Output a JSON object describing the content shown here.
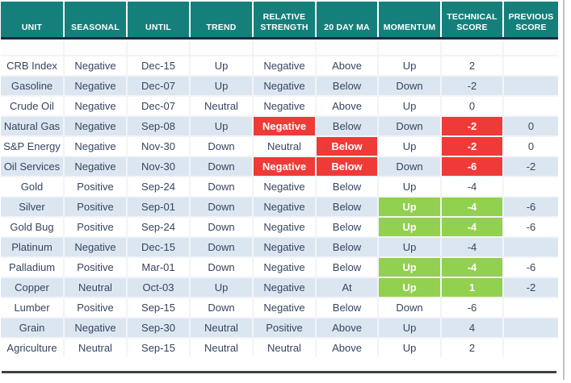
{
  "chart_data": {
    "type": "table",
    "columns": [
      "UNIT",
      "SEASONAL",
      "UNTIL",
      "TREND",
      "RELATIVE STRENGTH",
      "20 DAY MA",
      "MOMENTUM",
      "TECHNICAL SCORE",
      "PREVIOUS SCORE"
    ],
    "rows": [
      {
        "cells": [
          "CRB Index",
          "Negative",
          "Dec-15",
          "Up",
          "Negative",
          "Above",
          "Up",
          "2",
          ""
        ],
        "highlights": {}
      },
      {
        "cells": [
          "Gasoline",
          "Negative",
          "Dec-07",
          "Up",
          "Negative",
          "Below",
          "Down",
          "-2",
          ""
        ],
        "highlights": {}
      },
      {
        "cells": [
          "Crude Oil",
          "Negative",
          "Dec-07",
          "Neutral",
          "Negative",
          "Above",
          "Up",
          "0",
          ""
        ],
        "highlights": {}
      },
      {
        "cells": [
          "Natural Gas",
          "Negative",
          "Sep-08",
          "Up",
          "Negative",
          "Below",
          "Down",
          "-2",
          "0"
        ],
        "highlights": {
          "4": "red",
          "7": "red"
        }
      },
      {
        "cells": [
          "S&P Energy",
          "Negative",
          "Nov-30",
          "Down",
          "Neutral",
          "Below",
          "Up",
          "-2",
          "0"
        ],
        "highlights": {
          "5": "red",
          "7": "red"
        }
      },
      {
        "cells": [
          "Oil Services",
          "Negative",
          "Nov-30",
          "Down",
          "Negative",
          "Below",
          "Down",
          "-6",
          "-2"
        ],
        "highlights": {
          "4": "red",
          "5": "red",
          "7": "red"
        }
      },
      {
        "cells": [
          "Gold",
          "Positive",
          "Sep-24",
          "Down",
          "Negative",
          "Below",
          "Up",
          "-4",
          ""
        ],
        "highlights": {}
      },
      {
        "cells": [
          "Silver",
          "Positive",
          "Sep-01",
          "Down",
          "Negative",
          "Below",
          "Up",
          "-4",
          "-6"
        ],
        "highlights": {
          "6": "green",
          "7": "green"
        }
      },
      {
        "cells": [
          "Gold Bug",
          "Positive",
          "Sep-24",
          "Down",
          "Negative",
          "Below",
          "Up",
          "-4",
          "-6"
        ],
        "highlights": {
          "6": "green",
          "7": "green"
        }
      },
      {
        "cells": [
          "Platinum",
          "Negative",
          "Dec-15",
          "Down",
          "Negative",
          "Below",
          "Up",
          "-4",
          ""
        ],
        "highlights": {}
      },
      {
        "cells": [
          "Palladium",
          "Positive",
          "Mar-01",
          "Down",
          "Negative",
          "Below",
          "Up",
          "-4",
          "-6"
        ],
        "highlights": {
          "6": "green",
          "7": "green"
        }
      },
      {
        "cells": [
          "Copper",
          "Neutral",
          "Oct-03",
          "Up",
          "Negative",
          "At",
          "Up",
          "1",
          "-2"
        ],
        "highlights": {
          "6": "green",
          "7": "green"
        }
      },
      {
        "cells": [
          "Lumber",
          "Positive",
          "Sep-15",
          "Down",
          "Negative",
          "Below",
          "Down",
          "-6",
          ""
        ],
        "highlights": {}
      },
      {
        "cells": [
          "Grain",
          "Negative",
          "Sep-30",
          "Neutral",
          "Positive",
          "Above",
          "Up",
          "4",
          ""
        ],
        "highlights": {}
      },
      {
        "cells": [
          "Agriculture",
          "Neutral",
          "Sep-15",
          "Neutral",
          "Neutral",
          "Above",
          "Up",
          "2",
          ""
        ],
        "highlights": {}
      }
    ]
  },
  "colors": {
    "header_bg": "#15807b",
    "header_text": "#ffffff",
    "header_underline": "#142d45",
    "stripe": "#dce6f1",
    "body_text": "#36455f",
    "negative_highlight": "#ee3b38",
    "positive_highlight": "#92d050",
    "highlight_text": "#ffffff",
    "grid_gap": "#f2f4f8",
    "bottom_border": "#3d4048",
    "right_border": "#c2c2ca"
  }
}
